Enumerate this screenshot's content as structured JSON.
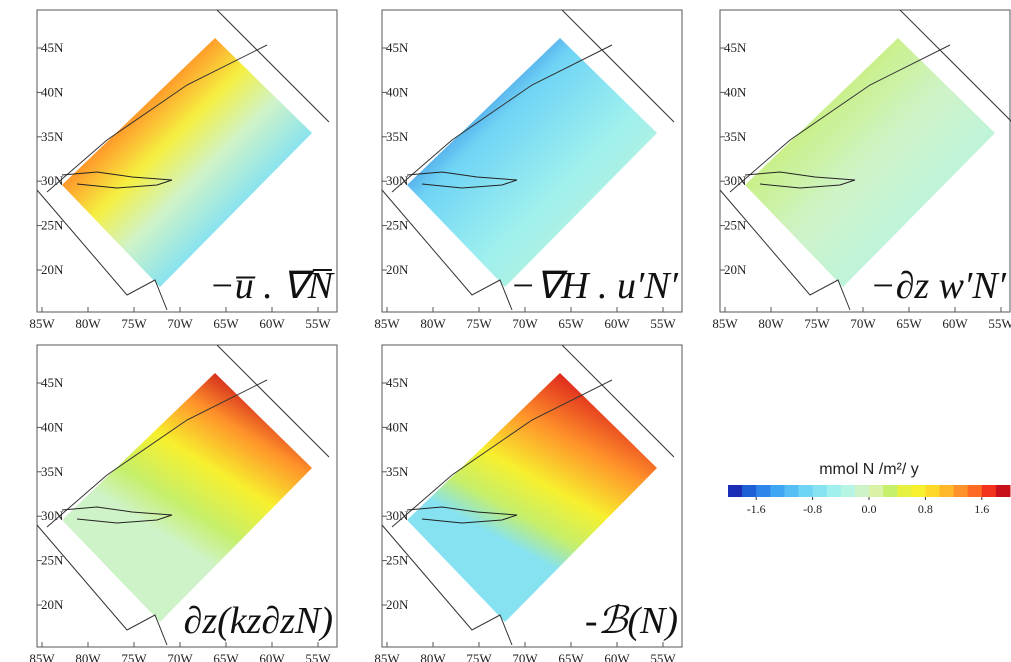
{
  "axes": {
    "lat_ticks": [
      "20N",
      "25N",
      "30N",
      "35N",
      "40N",
      "45N"
    ],
    "lon_ticks": [
      "85W",
      "80W",
      "75W",
      "70W",
      "65W",
      "60W",
      "55W"
    ]
  },
  "panels": [
    {
      "label": "−u̅ . ∇N̅"
    },
    {
      "label": "−∇H . u′N′"
    },
    {
      "label": "−∂z w′N′"
    },
    {
      "label": "∂z(kz∂zN)"
    },
    {
      "label": "-ℬ(N)"
    }
  ],
  "colorbar": {
    "title": "mmol N /m²/ y",
    "clim": [
      -2,
      2
    ],
    "ticks": [
      -1.6,
      -0.8,
      {
        "value": 0,
        "label": "0.0"
      },
      0.8,
      1.6
    ],
    "colors": [
      "#1a2db4",
      "#1f5fd6",
      "#2f86ea",
      "#3ea6f2",
      "#55bff5",
      "#6fd4f5",
      "#86e2f0",
      "#9ff0ee",
      "#b6f4e4",
      "#cff3c8",
      "#d9f2a6",
      "#c6ef6a",
      "#e6f23f",
      "#f7f02e",
      "#ffd92a",
      "#ffb82a",
      "#ff922a",
      "#ff6a22",
      "#f3321d",
      "#c8101a"
    ]
  }
}
